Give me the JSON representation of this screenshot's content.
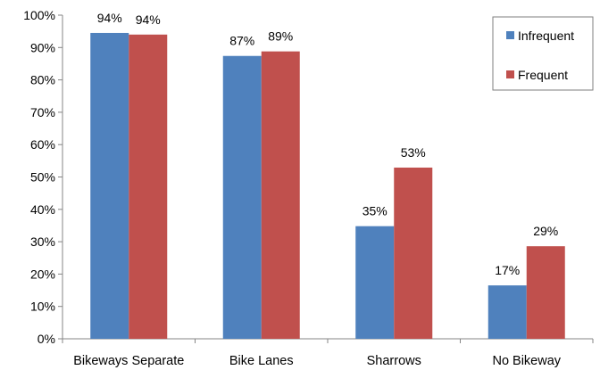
{
  "chart_data": {
    "type": "bar",
    "categories": [
      "Bikeways Separate",
      "Bike Lanes",
      "Sharrows",
      "No Bikeway"
    ],
    "series": [
      {
        "name": "Infrequent",
        "values": [
          94.5,
          87.4,
          34.8,
          16.5
        ],
        "labels": [
          "94%",
          "87%",
          "35%",
          "17%"
        ],
        "color": "#4f81bd"
      },
      {
        "name": "Frequent",
        "values": [
          94.0,
          88.8,
          52.9,
          28.6
        ],
        "labels": [
          "94%",
          "89%",
          "53%",
          "29%"
        ],
        "color": "#c0504d"
      }
    ],
    "ylim": [
      0,
      100
    ],
    "yticks": [
      0,
      10,
      20,
      30,
      40,
      50,
      60,
      70,
      80,
      90,
      100
    ],
    "ytick_labels": [
      "0%",
      "10%",
      "20%",
      "30%",
      "40%",
      "50%",
      "60%",
      "70%",
      "80%",
      "90%",
      "100%"
    ],
    "title": "",
    "xlabel": "",
    "ylabel": "",
    "grid": false,
    "legend_position": "top-right"
  }
}
